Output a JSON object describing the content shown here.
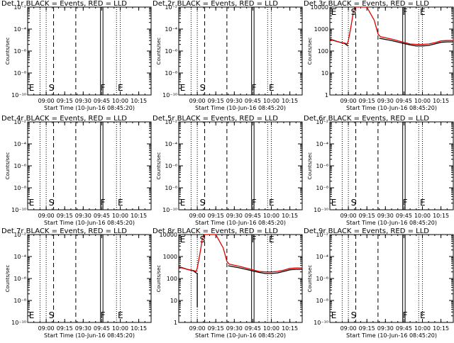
{
  "colors": {
    "events": "#000000",
    "lld": "#e00000",
    "background": "#ffffff"
  },
  "chart_data": [
    {
      "type": "line",
      "title": "Det 1r BLACK = Events, RED = LLD",
      "xlabel": "Start Time (10-Jun-16 08:45:20)",
      "ylabel": "Counts/sec",
      "xlim": [
        "08:45",
        "10:25"
      ],
      "ylim": [
        1e-10,
        0.01
      ],
      "yscale": "log",
      "xticks": [
        "09:00",
        "09:15",
        "09:30",
        "09:45",
        "10:00",
        "10:15"
      ],
      "yticks": [
        "10⁻¹⁰",
        "10⁻⁸",
        "10⁻⁶",
        "10⁻⁴",
        "10⁻²"
      ],
      "markers": [
        "E",
        "S",
        "F",
        "E"
      ],
      "series": []
    },
    {
      "type": "line",
      "title": "Det 2r BLACK = Events, RED = LLD",
      "xlabel": "Start Time (10-Jun-16 08:45:20)",
      "ylabel": "Counts/sec",
      "xlim": [
        "08:45",
        "10:25"
      ],
      "ylim": [
        1e-10,
        0.01
      ],
      "yscale": "log",
      "xticks": [
        "09:00",
        "09:15",
        "09:30",
        "09:45",
        "10:00",
        "10:15"
      ],
      "yticks": [
        "10⁻¹⁰",
        "10⁻⁸",
        "10⁻⁶",
        "10⁻⁴",
        "10⁻²"
      ],
      "markers": [
        "E",
        "S",
        "F",
        "E"
      ],
      "series": []
    },
    {
      "type": "line",
      "title": "Det 3r BLACK = Events, RED = LLD",
      "xlabel": "Start Time (10-Jun-16 08:45:20)",
      "ylabel": "Counts/sec",
      "xlim": [
        "08:45",
        "10:25"
      ],
      "ylim": [
        1,
        10000
      ],
      "yscale": "log",
      "xticks": [
        "09:00",
        "09:15",
        "09:30",
        "09:45",
        "10:00",
        "10:15"
      ],
      "yticks": [
        "1",
        "10",
        "100",
        "1000",
        "10000"
      ],
      "markers": [
        "E",
        "S",
        "F",
        "E"
      ],
      "series": [
        {
          "color": "events",
          "x": [
            "08:45",
            "08:52",
            "08:57",
            "08:59",
            "09:00"
          ],
          "y": [
            350,
            260,
            220,
            180,
            170
          ]
        },
        {
          "color": "lld",
          "x": [
            "08:45",
            "08:52",
            "08:57",
            "08:59",
            "09:00",
            "09:02",
            "09:04",
            "09:06",
            "09:15",
            "09:21",
            "09:24",
            "09:26",
            "09:35",
            "09:45",
            "09:50",
            "09:55",
            "10:00",
            "10:05",
            "10:10",
            "10:15",
            "10:20",
            "10:25"
          ],
          "y": [
            330,
            260,
            230,
            210,
            300,
            1200,
            6000,
            10000,
            10000,
            2500,
            600,
            450,
            350,
            250,
            210,
            200,
            200,
            210,
            240,
            290,
            300,
            300
          ]
        },
        {
          "color": "events",
          "x": [
            "09:25",
            "09:35",
            "09:45",
            "09:50",
            "09:55",
            "10:00",
            "10:05",
            "10:10",
            "10:15",
            "10:20",
            "10:25"
          ],
          "y": [
            380,
            300,
            220,
            190,
            170,
            170,
            180,
            210,
            250,
            260,
            260
          ]
        }
      ]
    },
    {
      "type": "line",
      "title": "Det 4r BLACK = Events, RED = LLD",
      "xlabel": "Start Time (10-Jun-16 08:45:20)",
      "ylabel": "Counts/sec",
      "xlim": [
        "08:45",
        "10:25"
      ],
      "ylim": [
        1e-10,
        0.01
      ],
      "yscale": "log",
      "xticks": [
        "09:00",
        "09:15",
        "09:30",
        "09:45",
        "10:00",
        "10:15"
      ],
      "yticks": [
        "10⁻¹⁰",
        "10⁻⁸",
        "10⁻⁶",
        "10⁻⁴",
        "10⁻²"
      ],
      "markers": [
        "E",
        "S",
        "F",
        "E"
      ],
      "series": []
    },
    {
      "type": "line",
      "title": "Det 5r BLACK = Events, RED = LLD",
      "xlabel": "Start Time (10-Jun-16 08:45:20)",
      "ylabel": "Counts/sec",
      "xlim": [
        "08:45",
        "10:25"
      ],
      "ylim": [
        1e-10,
        0.01
      ],
      "yscale": "log",
      "xticks": [
        "09:00",
        "09:15",
        "09:30",
        "09:45",
        "10:00",
        "10:15"
      ],
      "yticks": [
        "10⁻¹⁰",
        "10⁻⁸",
        "10⁻⁶",
        "10⁻⁴",
        "10⁻²"
      ],
      "markers": [
        "E",
        "S",
        "F",
        "E"
      ],
      "series": []
    },
    {
      "type": "line",
      "title": "Det 6r BLACK = Events, RED = LLD",
      "xlabel": "Start Time (10-Jun-16 08:45:20)",
      "ylabel": "Counts/sec",
      "xlim": [
        "08:45",
        "10:25"
      ],
      "ylim": [
        1e-10,
        0.01
      ],
      "yscale": "log",
      "xticks": [
        "09:00",
        "09:15",
        "09:30",
        "09:45",
        "10:00",
        "10:15"
      ],
      "yticks": [
        "10⁻¹⁰",
        "10⁻⁸",
        "10⁻⁶",
        "10⁻⁴",
        "10⁻²"
      ],
      "markers": [
        "E",
        "S",
        "F",
        "E"
      ],
      "series": []
    },
    {
      "type": "line",
      "title": "Det 7r BLACK = Events, RED = LLD",
      "xlabel": "Start Time (10-Jun-16 08:45:20)",
      "ylabel": "Counts/sec",
      "xlim": [
        "08:45",
        "10:25"
      ],
      "ylim": [
        1e-10,
        0.01
      ],
      "yscale": "log",
      "xticks": [
        "09:00",
        "09:15",
        "09:30",
        "09:45",
        "10:00",
        "10:15"
      ],
      "yticks": [
        "10⁻¹⁰",
        "10⁻⁸",
        "10⁻⁶",
        "10⁻⁴",
        "10⁻²"
      ],
      "markers": [
        "E",
        "S",
        "F",
        "E"
      ],
      "series": []
    },
    {
      "type": "line",
      "title": "Det 8r BLACK = Events, RED = LLD",
      "xlabel": "Start Time (10-Jun-16 08:45:20)",
      "ylabel": "Counts/sec",
      "xlim": [
        "08:45",
        "10:25"
      ],
      "ylim": [
        1,
        10000
      ],
      "yscale": "log",
      "xticks": [
        "09:00",
        "09:15",
        "09:30",
        "09:45",
        "10:00",
        "10:15"
      ],
      "yticks": [
        "1",
        "10",
        "100",
        "1000",
        "10000"
      ],
      "markers": [
        "E",
        "S",
        "F",
        "E"
      ],
      "series": [
        {
          "color": "events",
          "x": [
            "08:45",
            "08:52",
            "08:57",
            "08:59",
            "09:00",
            "09:00"
          ],
          "y": [
            350,
            260,
            220,
            180,
            170,
            5
          ]
        },
        {
          "color": "lld",
          "x": [
            "08:45",
            "08:52",
            "08:57",
            "08:59",
            "09:00",
            "09:02",
            "09:04",
            "09:06",
            "09:15",
            "09:21",
            "09:24",
            "09:26",
            "09:35",
            "09:45",
            "09:50",
            "09:55",
            "10:00",
            "10:05",
            "10:10",
            "10:15",
            "10:20",
            "10:25"
          ],
          "y": [
            330,
            260,
            230,
            210,
            300,
            1200,
            6000,
            10000,
            10000,
            2500,
            600,
            450,
            350,
            250,
            210,
            200,
            200,
            210,
            240,
            290,
            300,
            300
          ]
        },
        {
          "color": "events",
          "x": [
            "09:25",
            "09:35",
            "09:45",
            "09:50",
            "09:55",
            "10:00",
            "10:05",
            "10:10",
            "10:15",
            "10:20",
            "10:25"
          ],
          "y": [
            380,
            300,
            220,
            190,
            170,
            170,
            180,
            210,
            250,
            260,
            260
          ]
        }
      ]
    },
    {
      "type": "line",
      "title": "Det 9r BLACK = Events, RED = LLD",
      "xlabel": "Start Time (10-Jun-16 08:45:20)",
      "ylabel": "Counts/sec",
      "xlim": [
        "08:45",
        "10:25"
      ],
      "ylim": [
        1e-10,
        0.01
      ],
      "yscale": "log",
      "xticks": [
        "09:00",
        "09:15",
        "09:30",
        "09:45",
        "10:00",
        "10:15"
      ],
      "yticks": [
        "10⁻¹⁰",
        "10⁻⁸",
        "10⁻⁶",
        "10⁻⁴",
        "10⁻²"
      ],
      "markers": [
        "E",
        "S",
        "F",
        "E"
      ],
      "series": []
    }
  ]
}
